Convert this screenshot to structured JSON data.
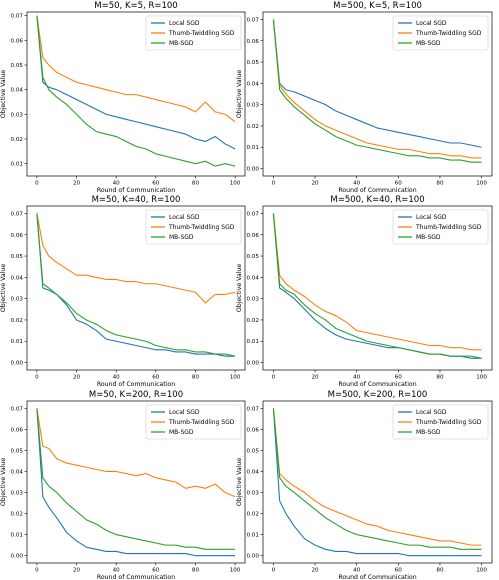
{
  "chart_data": [
    {
      "type": "line",
      "title": "M=50, K=5, R=100",
      "xlabel": "Round of Communication",
      "ylabel": "Objective Value",
      "xlim": [
        -5,
        105
      ],
      "ylim": [
        0.005,
        0.0715
      ],
      "xticks": [
        0,
        20,
        40,
        60,
        80,
        100
      ],
      "yticks": [
        0.01,
        0.02,
        0.03,
        0.04,
        0.05,
        0.06,
        0.07
      ],
      "ytick_labels": [
        "0.01",
        "0.02",
        "0.03",
        "0.04",
        "0.05",
        "0.06",
        "0.07"
      ],
      "legend": "top-right",
      "grid": false,
      "x": [
        0,
        3,
        6,
        10,
        15,
        20,
        25,
        30,
        35,
        40,
        45,
        50,
        55,
        60,
        65,
        70,
        75,
        80,
        85,
        90,
        95,
        100
      ],
      "series": [
        {
          "name": "Local SGD",
          "color": "#1f77b4",
          "values": [
            0.07,
            0.043,
            0.041,
            0.04,
            0.038,
            0.036,
            0.034,
            0.032,
            0.03,
            0.029,
            0.028,
            0.027,
            0.026,
            0.025,
            0.024,
            0.023,
            0.022,
            0.02,
            0.019,
            0.021,
            0.018,
            0.016
          ]
        },
        {
          "name": "Thumb-Twiddling SGD",
          "color": "#ff7f0e",
          "values": [
            0.07,
            0.053,
            0.05,
            0.047,
            0.045,
            0.043,
            0.042,
            0.041,
            0.04,
            0.039,
            0.038,
            0.038,
            0.037,
            0.036,
            0.035,
            0.034,
            0.033,
            0.031,
            0.035,
            0.031,
            0.03,
            0.027
          ]
        },
        {
          "name": "MB-SGD",
          "color": "#2ca02c",
          "values": [
            0.07,
            0.045,
            0.04,
            0.037,
            0.034,
            0.03,
            0.026,
            0.023,
            0.022,
            0.021,
            0.019,
            0.017,
            0.016,
            0.014,
            0.013,
            0.012,
            0.011,
            0.01,
            0.011,
            0.009,
            0.01,
            0.009
          ]
        }
      ]
    },
    {
      "type": "line",
      "title": "M=500, K=5, R=100",
      "xlabel": "Round of Communication",
      "ylabel": "Objective Value",
      "xlim": [
        -5,
        105
      ],
      "ylim": [
        -0.0035,
        0.0735
      ],
      "xticks": [
        0,
        20,
        40,
        60,
        80,
        100
      ],
      "yticks": [
        0.0,
        0.01,
        0.02,
        0.03,
        0.04,
        0.05,
        0.06,
        0.07
      ],
      "ytick_labels": [
        "0.00",
        "0.01",
        "0.02",
        "0.03",
        "0.04",
        "0.05",
        "0.06",
        "0.07"
      ],
      "legend": "top-right",
      "grid": false,
      "x": [
        0,
        3,
        6,
        10,
        15,
        20,
        25,
        30,
        35,
        40,
        45,
        50,
        55,
        60,
        65,
        70,
        75,
        80,
        85,
        90,
        95,
        100
      ],
      "series": [
        {
          "name": "Local SGD",
          "color": "#1f77b4",
          "values": [
            0.07,
            0.04,
            0.037,
            0.036,
            0.034,
            0.032,
            0.03,
            0.027,
            0.025,
            0.023,
            0.021,
            0.019,
            0.018,
            0.017,
            0.016,
            0.015,
            0.014,
            0.013,
            0.012,
            0.012,
            0.011,
            0.01
          ]
        },
        {
          "name": "Thumb-Twiddling SGD",
          "color": "#ff7f0e",
          "values": [
            0.07,
            0.039,
            0.035,
            0.031,
            0.027,
            0.023,
            0.02,
            0.018,
            0.016,
            0.014,
            0.012,
            0.011,
            0.01,
            0.009,
            0.009,
            0.008,
            0.007,
            0.007,
            0.006,
            0.006,
            0.005,
            0.005
          ]
        },
        {
          "name": "MB-SGD",
          "color": "#2ca02c",
          "values": [
            0.07,
            0.037,
            0.033,
            0.029,
            0.025,
            0.021,
            0.018,
            0.015,
            0.013,
            0.011,
            0.01,
            0.009,
            0.008,
            0.007,
            0.006,
            0.006,
            0.005,
            0.005,
            0.004,
            0.004,
            0.003,
            0.003
          ]
        }
      ]
    },
    {
      "type": "line",
      "title": "M=50, K=40, R=100",
      "xlabel": "Round of Communication",
      "ylabel": "Objective Value",
      "xlim": [
        -5,
        105
      ],
      "ylim": [
        -0.0035,
        0.0735
      ],
      "xticks": [
        0,
        20,
        40,
        60,
        80,
        100
      ],
      "yticks": [
        0.0,
        0.01,
        0.02,
        0.03,
        0.04,
        0.05,
        0.06,
        0.07
      ],
      "ytick_labels": [
        "0.00",
        "0.01",
        "0.02",
        "0.03",
        "0.04",
        "0.05",
        "0.06",
        "0.07"
      ],
      "legend": "top-right",
      "grid": false,
      "x": [
        0,
        3,
        6,
        10,
        15,
        20,
        25,
        30,
        35,
        40,
        45,
        50,
        55,
        60,
        65,
        70,
        75,
        80,
        85,
        90,
        95,
        100
      ],
      "series": [
        {
          "name": "Local SGD",
          "color": "#1f77b4",
          "values": [
            0.07,
            0.035,
            0.034,
            0.032,
            0.027,
            0.02,
            0.018,
            0.015,
            0.011,
            0.01,
            0.009,
            0.008,
            0.007,
            0.006,
            0.006,
            0.005,
            0.005,
            0.004,
            0.004,
            0.004,
            0.003,
            0.003
          ]
        },
        {
          "name": "Thumb-Twiddling SGD",
          "color": "#ff7f0e",
          "values": [
            0.07,
            0.055,
            0.05,
            0.047,
            0.044,
            0.041,
            0.041,
            0.04,
            0.039,
            0.039,
            0.038,
            0.038,
            0.037,
            0.037,
            0.036,
            0.035,
            0.034,
            0.033,
            0.028,
            0.032,
            0.032,
            0.033
          ]
        },
        {
          "name": "MB-SGD",
          "color": "#2ca02c",
          "values": [
            0.07,
            0.037,
            0.035,
            0.032,
            0.028,
            0.023,
            0.02,
            0.018,
            0.015,
            0.013,
            0.012,
            0.011,
            0.01,
            0.008,
            0.007,
            0.006,
            0.006,
            0.005,
            0.005,
            0.004,
            0.004,
            0.003
          ]
        }
      ]
    },
    {
      "type": "line",
      "title": "M=500, K=40, R=100",
      "xlabel": "Round of Communication",
      "ylabel": "Objective Value",
      "xlim": [
        -5,
        105
      ],
      "ylim": [
        -0.0035,
        0.0735
      ],
      "xticks": [
        0,
        20,
        40,
        60,
        80,
        100
      ],
      "yticks": [
        0.0,
        0.01,
        0.02,
        0.03,
        0.04,
        0.05,
        0.06,
        0.07
      ],
      "ytick_labels": [
        "0.00",
        "0.01",
        "0.02",
        "0.03",
        "0.04",
        "0.05",
        "0.06",
        "0.07"
      ],
      "legend": "top-right",
      "grid": false,
      "x": [
        0,
        3,
        6,
        10,
        15,
        20,
        25,
        30,
        35,
        40,
        45,
        50,
        55,
        60,
        65,
        70,
        75,
        80,
        85,
        90,
        95,
        100
      ],
      "series": [
        {
          "name": "Local SGD",
          "color": "#1f77b4",
          "values": [
            0.07,
            0.035,
            0.033,
            0.03,
            0.025,
            0.02,
            0.016,
            0.013,
            0.011,
            0.01,
            0.009,
            0.008,
            0.007,
            0.007,
            0.006,
            0.005,
            0.004,
            0.004,
            0.003,
            0.003,
            0.002,
            0.002
          ]
        },
        {
          "name": "Thumb-Twiddling SGD",
          "color": "#ff7f0e",
          "values": [
            0.07,
            0.041,
            0.037,
            0.034,
            0.031,
            0.027,
            0.024,
            0.022,
            0.019,
            0.015,
            0.014,
            0.013,
            0.012,
            0.011,
            0.01,
            0.009,
            0.008,
            0.008,
            0.007,
            0.007,
            0.006,
            0.006
          ]
        },
        {
          "name": "MB-SGD",
          "color": "#2ca02c",
          "values": [
            0.07,
            0.037,
            0.034,
            0.032,
            0.027,
            0.023,
            0.02,
            0.016,
            0.014,
            0.012,
            0.01,
            0.009,
            0.008,
            0.007,
            0.006,
            0.005,
            0.004,
            0.004,
            0.003,
            0.003,
            0.003,
            0.002
          ]
        }
      ]
    },
    {
      "type": "line",
      "title": "M=50, K=200, R=100",
      "xlabel": "Round of Communication",
      "ylabel": "Objective Value",
      "xlim": [
        -5,
        105
      ],
      "ylim": [
        -0.0035,
        0.0735
      ],
      "xticks": [
        0,
        20,
        40,
        60,
        80,
        100
      ],
      "yticks": [
        0.0,
        0.01,
        0.02,
        0.03,
        0.04,
        0.05,
        0.06,
        0.07
      ],
      "ytick_labels": [
        "0.00",
        "0.01",
        "0.02",
        "0.03",
        "0.04",
        "0.05",
        "0.06",
        "0.07"
      ],
      "legend": "top-right",
      "grid": false,
      "x": [
        0,
        3,
        6,
        10,
        15,
        20,
        25,
        30,
        35,
        40,
        45,
        50,
        55,
        60,
        65,
        70,
        75,
        80,
        85,
        90,
        95,
        100
      ],
      "series": [
        {
          "name": "Local SGD",
          "color": "#1f77b4",
          "values": [
            0.07,
            0.028,
            0.023,
            0.018,
            0.011,
            0.007,
            0.004,
            0.003,
            0.002,
            0.002,
            0.001,
            0.001,
            0.001,
            0.001,
            0.001,
            0.001,
            0.001,
            0.0,
            0.0,
            0.0,
            0.0,
            0.0
          ]
        },
        {
          "name": "Thumb-Twiddling SGD",
          "color": "#ff7f0e",
          "values": [
            0.07,
            0.052,
            0.051,
            0.046,
            0.044,
            0.043,
            0.042,
            0.041,
            0.04,
            0.04,
            0.039,
            0.038,
            0.039,
            0.037,
            0.036,
            0.035,
            0.032,
            0.033,
            0.032,
            0.034,
            0.03,
            0.028
          ]
        },
        {
          "name": "MB-SGD",
          "color": "#2ca02c",
          "values": [
            0.07,
            0.037,
            0.033,
            0.03,
            0.025,
            0.021,
            0.017,
            0.015,
            0.012,
            0.01,
            0.009,
            0.008,
            0.007,
            0.006,
            0.005,
            0.005,
            0.004,
            0.004,
            0.003,
            0.003,
            0.003,
            0.003
          ]
        }
      ]
    },
    {
      "type": "line",
      "title": "M=500, K=200, R=100",
      "xlabel": "Round of Communication",
      "ylabel": "Objective Value",
      "xlim": [
        -5,
        105
      ],
      "ylim": [
        -0.0035,
        0.0735
      ],
      "xticks": [
        0,
        20,
        40,
        60,
        80,
        100
      ],
      "yticks": [
        0.0,
        0.01,
        0.02,
        0.03,
        0.04,
        0.05,
        0.06,
        0.07
      ],
      "ytick_labels": [
        "0.00",
        "0.01",
        "0.02",
        "0.03",
        "0.04",
        "0.05",
        "0.06",
        "0.07"
      ],
      "legend": "top-right",
      "grid": false,
      "x": [
        0,
        3,
        6,
        10,
        15,
        20,
        25,
        30,
        35,
        40,
        45,
        50,
        55,
        60,
        65,
        70,
        75,
        80,
        85,
        90,
        95,
        100
      ],
      "series": [
        {
          "name": "Local SGD",
          "color": "#1f77b4",
          "values": [
            0.07,
            0.026,
            0.02,
            0.014,
            0.008,
            0.005,
            0.003,
            0.002,
            0.002,
            0.001,
            0.001,
            0.001,
            0.001,
            0.001,
            0.0,
            0.0,
            0.0,
            0.0,
            0.0,
            0.0,
            0.0,
            0.0
          ]
        },
        {
          "name": "Thumb-Twiddling SGD",
          "color": "#ff7f0e",
          "values": [
            0.07,
            0.039,
            0.036,
            0.033,
            0.03,
            0.026,
            0.023,
            0.021,
            0.019,
            0.017,
            0.015,
            0.014,
            0.012,
            0.011,
            0.01,
            0.009,
            0.008,
            0.007,
            0.007,
            0.006,
            0.005,
            0.005
          ]
        },
        {
          "name": "MB-SGD",
          "color": "#2ca02c",
          "values": [
            0.07,
            0.037,
            0.033,
            0.03,
            0.026,
            0.022,
            0.018,
            0.015,
            0.012,
            0.01,
            0.009,
            0.008,
            0.007,
            0.006,
            0.005,
            0.005,
            0.004,
            0.004,
            0.004,
            0.003,
            0.003,
            0.003
          ]
        }
      ]
    }
  ]
}
